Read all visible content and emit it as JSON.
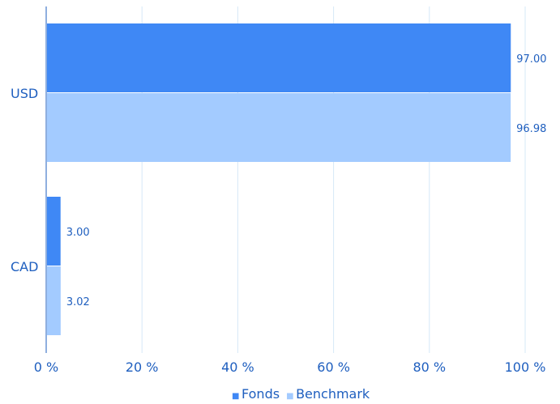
{
  "chart_data": {
    "type": "bar",
    "orientation": "horizontal",
    "categories": [
      "USD",
      "CAD"
    ],
    "series": [
      {
        "name": "Fonds",
        "color": "#3f88f5",
        "values": [
          97.0,
          3.0
        ],
        "labels": [
          "97.00",
          "3.00"
        ]
      },
      {
        "name": "Benchmark",
        "color": "#a3cbff",
        "values": [
          96.98,
          3.02
        ],
        "labels": [
          "96.98",
          "3.02"
        ]
      }
    ],
    "xlim": [
      0,
      100
    ],
    "xticks": [
      0,
      20,
      40,
      60,
      80,
      100
    ],
    "xtick_labels": [
      "0 %",
      "20 %",
      "40 %",
      "60 %",
      "80 %",
      "100 %"
    ],
    "grid": true,
    "legend_position": "bottom-center",
    "legend_marker": "■"
  }
}
